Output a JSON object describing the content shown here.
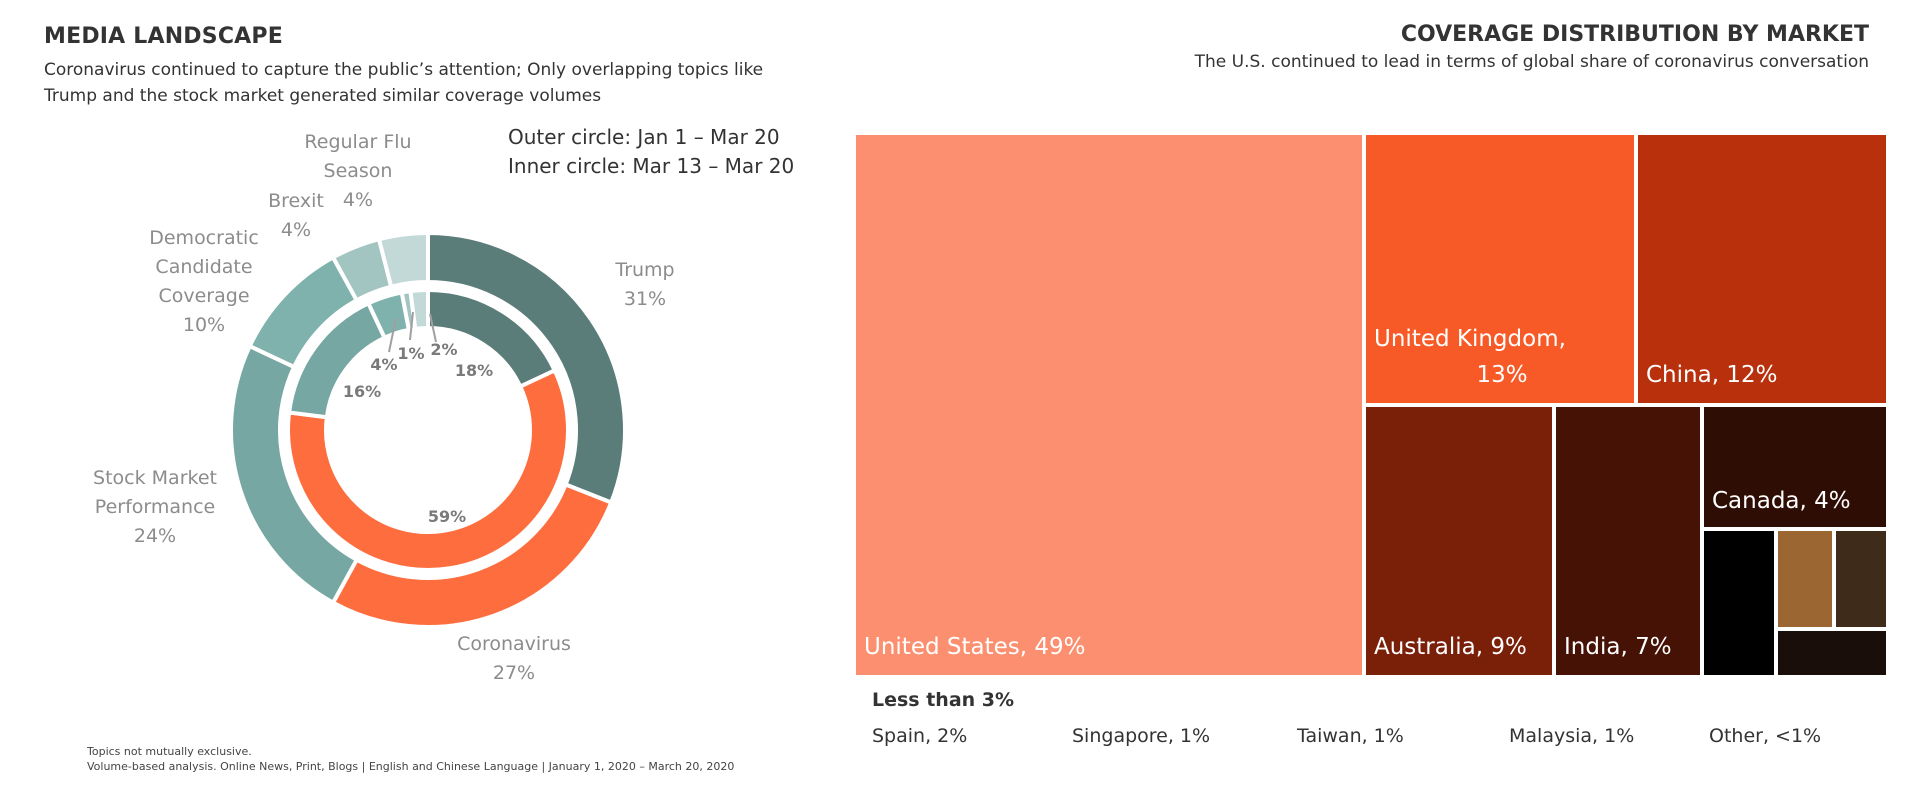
{
  "left": {
    "title": "MEDIA LANDSCAPE",
    "subtitle_line1": "Coronavirus continued to capture the public’s attention; Only overlapping topics like",
    "subtitle_line2": "Trump and the stock market generated similar coverage volumes",
    "note_outer": "Outer circle: Jan 1 – Mar 20",
    "note_inner": "Inner circle: Mar 13 – Mar 20",
    "footnote1": "Topics not mutually exclusive.",
    "footnote2": "Volume-based analysis. Online News, Print, Blogs | English and Chinese Language | January 1, 2020 – March 20, 2020"
  },
  "right": {
    "title": "COVERAGE DISTRIBUTION BY MARKET",
    "subtitle": "The U.S. continued to lead in terms of global share of coronavirus conversation",
    "small_title": "Less than 3%",
    "small_items": [
      "Spain, 2%",
      "Singapore, 1%",
      "Taiwan, 1%",
      "Malaysia, 1%",
      "Other, <1%"
    ]
  },
  "chart_data": [
    {
      "type": "pie",
      "series": [
        {
          "name": "Outer circle: Jan 1 – Mar 20",
          "categories": [
            "Trump",
            "Coronavirus",
            "Stock Market Performance",
            "Democratic Candidate Coverage",
            "Brexit",
            "Regular Flu Season"
          ],
          "values": [
            31,
            27,
            24,
            10,
            4,
            4
          ],
          "labels": [
            [
              "Trump",
              "31%"
            ],
            [
              "Coronavirus",
              "27%"
            ],
            [
              "Stock Market",
              "Performance",
              "24%"
            ],
            [
              "Democratic",
              "Candidate",
              "Coverage",
              "10%"
            ],
            [
              "Brexit",
              "4%"
            ],
            [
              "Regular Flu",
              "Season",
              "4%"
            ]
          ]
        },
        {
          "name": "Inner circle: Mar 13 – Mar 20",
          "categories": [
            "Trump",
            "Coronavirus",
            "Stock Market Performance",
            "Democratic Candidate Coverage",
            "Brexit",
            "Regular Flu Season"
          ],
          "values": [
            18,
            59,
            16,
            4,
            1,
            2
          ],
          "labels": [
            "18%",
            "59%",
            "16%",
            "4%",
            "1%",
            "2%"
          ]
        }
      ],
      "colors": [
        "#5b7d7a",
        "#fd6d3d",
        "#76a7a2",
        "#7fb2ad",
        "#a3c5c1",
        "#c2d9d7"
      ]
    },
    {
      "type": "treemap",
      "title": "COVERAGE DISTRIBUTION BY MARKET",
      "categories": [
        "United States",
        "United Kingdom",
        "China",
        "Australia",
        "India",
        "Canada",
        "Spain",
        "Singapore",
        "Taiwan",
        "Malaysia",
        "Other"
      ],
      "values": [
        49,
        13,
        12,
        9,
        7,
        4,
        2,
        1,
        1,
        1,
        0.5
      ],
      "labels": [
        "United States, 49%",
        "United Kingdom,\n13%",
        "China, 12%",
        "Australia, 9%",
        "India, 7%",
        "Canada, 4%",
        "",
        "",
        "",
        "",
        ""
      ],
      "colors": [
        "#fb8f6f",
        "#f85a27",
        "#b8300c",
        "#7a1f08",
        "#451205",
        "#2e0d04",
        "#000000",
        "#9c6632",
        "#3e2b1a",
        "#1a0e0a",
        "#d0d0d0"
      ]
    }
  ]
}
